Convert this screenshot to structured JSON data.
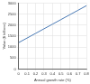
{
  "chart_data": {
    "type": "line",
    "x_label": "Annual growth rate (%)",
    "y_label": "Value ($ billions)",
    "x": [
      0,
      0.1,
      0.2,
      0.3,
      0.4,
      0.5,
      0.6,
      0.7,
      0.8
    ],
    "values": [
      1200,
      1410,
      1620,
      1830,
      2040,
      2250,
      2460,
      2670,
      2880
    ],
    "color": "#4a7ab5",
    "xlim": [
      0,
      0.8
    ],
    "xticks": [
      0,
      0.1,
      0.2,
      0.3,
      0.4,
      0.5,
      0.6,
      0.7,
      0.8
    ],
    "ylim": [
      0,
      3000
    ],
    "yticks": [
      0,
      500,
      1000,
      1500,
      2000,
      2500,
      3000
    ],
    "grid": true
  }
}
